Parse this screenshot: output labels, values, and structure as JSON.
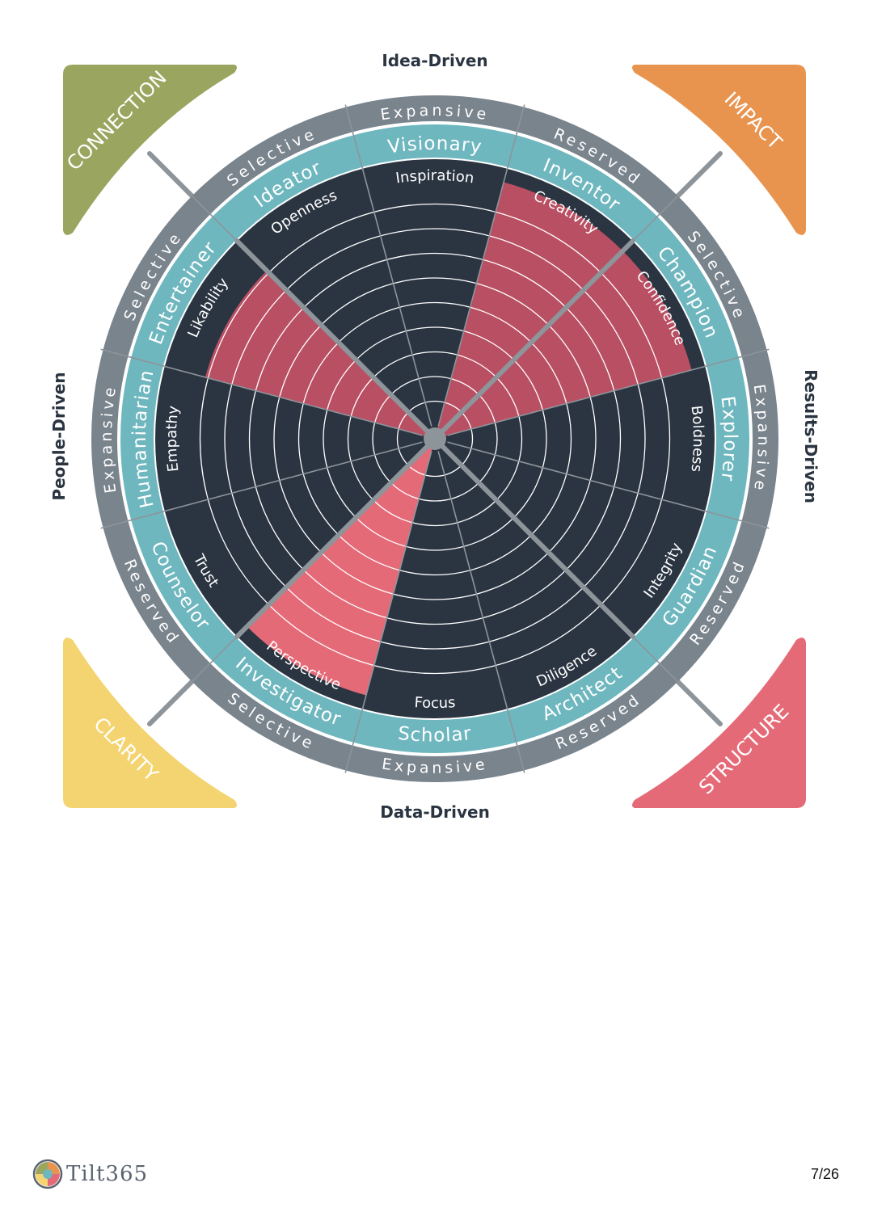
{
  "axes": {
    "top": "Idea-Driven",
    "bottom": "Data-Driven",
    "left": "People-Driven",
    "right": "Results-Driven"
  },
  "corners": [
    {
      "label": "CONNECTION",
      "color": "#9aa55f"
    },
    {
      "label": "IMPACT",
      "color": "#e8944f"
    },
    {
      "label": "CLARITY",
      "color": "#f4d470"
    },
    {
      "label": "STRUCTURE",
      "color": "#e56a78"
    }
  ],
  "segments": [
    {
      "role": "Visionary",
      "trait": "Inspiration",
      "band": "Expansive",
      "value": 0
    },
    {
      "role": "Inventor",
      "trait": "Creativity",
      "band": "Reserved",
      "value": 0.95
    },
    {
      "role": "Champion",
      "trait": "Confidence",
      "band": "Selective",
      "value": 0.95
    },
    {
      "role": "Explorer",
      "trait": "Boldness",
      "band": "Expansive",
      "value": 0
    },
    {
      "role": "Guardian",
      "trait": "Integrity",
      "band": "Reserved",
      "value": 0
    },
    {
      "role": "Architect",
      "trait": "Diligence",
      "band": "Reserved",
      "value": 0
    },
    {
      "role": "Scholar",
      "trait": "Focus",
      "band": "Expansive",
      "value": 0
    },
    {
      "role": "Investigator",
      "trait": "Perspective",
      "band": "Selective",
      "value": 0.95
    },
    {
      "role": "Counselor",
      "trait": "Trust",
      "band": "Reserved",
      "value": 0
    },
    {
      "role": "Humanitarian",
      "trait": "Empathy",
      "band": "Expansive",
      "value": 0
    },
    {
      "role": "Entertainer",
      "trait": "Likability",
      "band": "Selective",
      "value": 0.85
    },
    {
      "role": "Ideator",
      "trait": "Openness",
      "band": "Selective",
      "value": 0
    }
  ],
  "colors": {
    "outer_ring": "#7a848d",
    "role_ring": "#6fb7bf",
    "core": "#2b3542",
    "highlight_upper": "#b94f63",
    "highlight_lower": "#e56a78",
    "divider": "#8d949a"
  },
  "footer": {
    "logo_text": "Tilt365",
    "page": "7/26"
  }
}
